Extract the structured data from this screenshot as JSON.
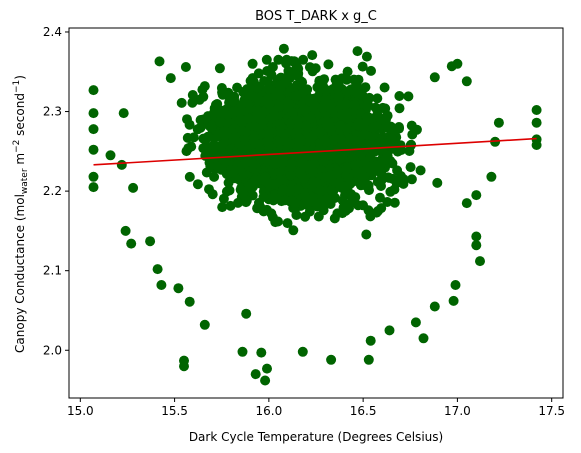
{
  "chart_data": {
    "type": "scatter",
    "title": "BOS T_DARK x g_C",
    "xlabel": "Dark Cycle Temperature (Degrees Celsius)",
    "ylabel": {
      "prefix": "Canopy Conductance (mol",
      "sub": "water",
      "mid": " m",
      "sup1": "−2",
      "mid2": " second",
      "sup2": "−1",
      "suffix": ")"
    },
    "xlim": [
      14.94,
      17.56
    ],
    "ylim": [
      1.94,
      2.405
    ],
    "xticks": [
      15.0,
      15.5,
      16.0,
      16.5,
      17.0,
      17.5
    ],
    "xtick_labels": [
      "15.0",
      "15.5",
      "16.0",
      "16.5",
      "17.0",
      "17.5"
    ],
    "yticks": [
      2.0,
      2.1,
      2.2,
      2.3,
      2.4
    ],
    "ytick_labels": [
      "2.0",
      "2.1",
      "2.2",
      "2.3",
      "2.4"
    ],
    "grid": false,
    "point_color": "#006400",
    "line_color": "#dd0000",
    "scatter_center": {
      "x": 16.18,
      "y": 2.262
    },
    "scatter_spread": {
      "x": 0.32,
      "y": 0.052
    },
    "scatter_count": 2600,
    "outliers": [
      {
        "x": 15.07,
        "y": 2.327
      },
      {
        "x": 15.07,
        "y": 2.298
      },
      {
        "x": 15.07,
        "y": 2.278
      },
      {
        "x": 15.07,
        "y": 2.252
      },
      {
        "x": 15.07,
        "y": 2.218
      },
      {
        "x": 15.07,
        "y": 2.205
      },
      {
        "x": 15.23,
        "y": 2.298
      },
      {
        "x": 15.22,
        "y": 2.233
      },
      {
        "x": 15.28,
        "y": 2.204
      },
      {
        "x": 15.42,
        "y": 2.363
      },
      {
        "x": 15.48,
        "y": 2.342
      },
      {
        "x": 15.56,
        "y": 2.356
      },
      {
        "x": 15.66,
        "y": 2.332
      },
      {
        "x": 15.41,
        "y": 2.102
      },
      {
        "x": 15.43,
        "y": 2.082
      },
      {
        "x": 15.52,
        "y": 2.078
      },
      {
        "x": 15.58,
        "y": 2.061
      },
      {
        "x": 15.66,
        "y": 2.032
      },
      {
        "x": 15.88,
        "y": 2.046
      },
      {
        "x": 15.86,
        "y": 1.998
      },
      {
        "x": 15.93,
        "y": 1.97
      },
      {
        "x": 15.96,
        "y": 1.997
      },
      {
        "x": 15.99,
        "y": 1.977
      },
      {
        "x": 15.98,
        "y": 1.962
      },
      {
        "x": 15.55,
        "y": 1.987
      },
      {
        "x": 15.55,
        "y": 1.98
      },
      {
        "x": 16.18,
        "y": 1.998
      },
      {
        "x": 16.33,
        "y": 1.988
      },
      {
        "x": 16.53,
        "y": 1.988
      },
      {
        "x": 16.54,
        "y": 2.012
      },
      {
        "x": 16.64,
        "y": 2.025
      },
      {
        "x": 16.82,
        "y": 2.015
      },
      {
        "x": 16.78,
        "y": 2.035
      },
      {
        "x": 16.88,
        "y": 2.055
      },
      {
        "x": 16.98,
        "y": 2.062
      },
      {
        "x": 16.99,
        "y": 2.082
      },
      {
        "x": 17.12,
        "y": 2.112
      },
      {
        "x": 17.1,
        "y": 2.132
      },
      {
        "x": 17.1,
        "y": 2.143
      },
      {
        "x": 17.18,
        "y": 2.218
      },
      {
        "x": 17.2,
        "y": 2.262
      },
      {
        "x": 17.22,
        "y": 2.286
      },
      {
        "x": 17.42,
        "y": 2.302
      },
      {
        "x": 17.42,
        "y": 2.286
      },
      {
        "x": 17.42,
        "y": 2.265
      },
      {
        "x": 17.42,
        "y": 2.258
      },
      {
        "x": 16.08,
        "y": 2.379
      },
      {
        "x": 16.23,
        "y": 2.371
      },
      {
        "x": 16.47,
        "y": 2.376
      },
      {
        "x": 16.52,
        "y": 2.369
      },
      {
        "x": 16.88,
        "y": 2.343
      },
      {
        "x": 16.97,
        "y": 2.357
      },
      {
        "x": 17.0,
        "y": 2.36
      },
      {
        "x": 17.05,
        "y": 2.338
      },
      {
        "x": 15.16,
        "y": 2.245
      },
      {
        "x": 15.24,
        "y": 2.15
      },
      {
        "x": 15.27,
        "y": 2.134
      },
      {
        "x": 15.37,
        "y": 2.137
      },
      {
        "x": 17.05,
        "y": 2.185
      },
      {
        "x": 17.1,
        "y": 2.195
      }
    ],
    "trend_line": {
      "x": [
        15.07,
        17.42
      ],
      "y": [
        2.233,
        2.266
      ]
    }
  }
}
